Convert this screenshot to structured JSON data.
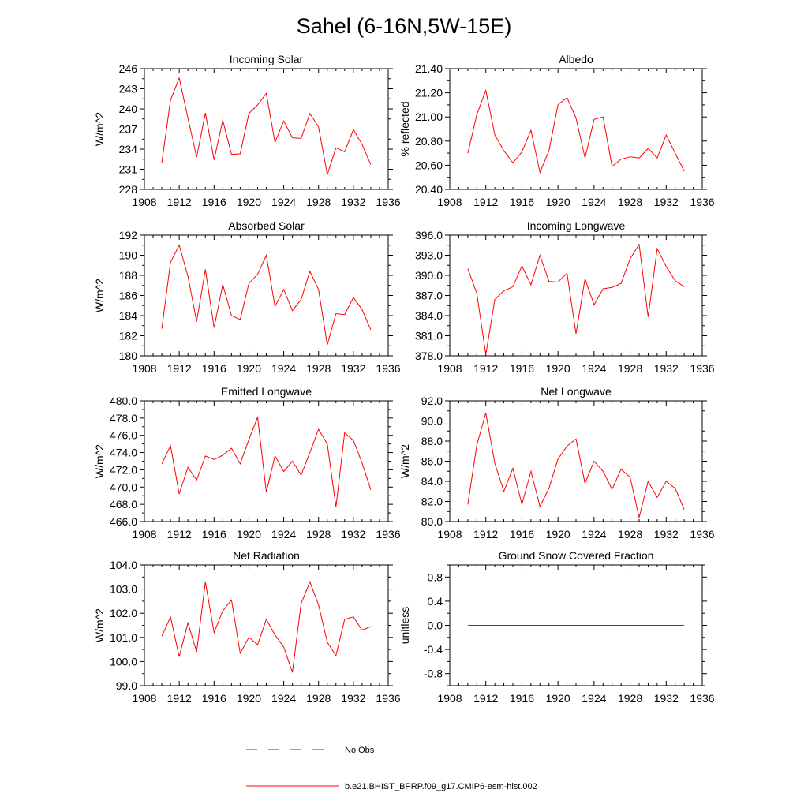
{
  "page_title": "Sahel (6-16N,5W-15E)",
  "colors": {
    "model": "#ff0000",
    "obs": "#3333aa",
    "axis": "#000000"
  },
  "legend": {
    "obs_label": "No Obs",
    "model_label": "b.e21.BHIST_BPRP.f09_g17.CMIP6-esm-hist.002"
  },
  "chart_data": [
    {
      "type": "line",
      "title": "Incoming Solar",
      "ylabel": "W/m^2",
      "xlim": [
        1908,
        1936
      ],
      "xticks": [
        1908,
        1912,
        1916,
        1920,
        1924,
        1928,
        1932,
        1936
      ],
      "ylim": [
        228,
        246
      ],
      "yticks": [
        228,
        231,
        234,
        237,
        240,
        243,
        246
      ],
      "ytick_labels": [
        "228",
        "231",
        "234",
        "237",
        "240",
        "243",
        "246"
      ],
      "x": [
        1910,
        1911,
        1912,
        1913,
        1914,
        1915,
        1916,
        1917,
        1918,
        1919,
        1920,
        1921,
        1922,
        1923,
        1924,
        1925,
        1926,
        1927,
        1928,
        1929,
        1930,
        1931,
        1932,
        1933,
        1934
      ],
      "series": [
        {
          "name": "b.e21.BHIST_BPRP.f09_g17.CMIP6-esm-hist.002",
          "values": [
            232.0,
            241.3,
            244.6,
            238.6,
            232.8,
            239.4,
            232.4,
            238.3,
            233.2,
            233.3,
            239.3,
            240.6,
            242.3,
            235.0,
            238.2,
            235.7,
            235.6,
            239.3,
            237.3,
            230.2,
            234.2,
            233.6,
            236.9,
            234.7,
            231.7
          ]
        }
      ]
    },
    {
      "type": "line",
      "title": "Albedo",
      "ylabel": "% reflected",
      "xlim": [
        1908,
        1936
      ],
      "xticks": [
        1908,
        1912,
        1916,
        1920,
        1924,
        1928,
        1932,
        1936
      ],
      "ylim": [
        20.4,
        21.4
      ],
      "yticks": [
        20.4,
        20.6,
        20.8,
        21.0,
        21.2,
        21.4
      ],
      "ytick_labels": [
        "20.40",
        "20.60",
        "20.80",
        "21.00",
        "21.20",
        "21.40"
      ],
      "x": [
        1910,
        1911,
        1912,
        1913,
        1914,
        1915,
        1916,
        1917,
        1918,
        1919,
        1920,
        1921,
        1922,
        1923,
        1924,
        1925,
        1926,
        1927,
        1928,
        1929,
        1930,
        1931,
        1932,
        1933,
        1934
      ],
      "series": [
        {
          "name": "b.e21.BHIST_BPRP.f09_g17.CMIP6-esm-hist.002",
          "values": [
            20.7,
            21.02,
            21.22,
            20.85,
            20.72,
            20.62,
            20.71,
            20.89,
            20.54,
            20.72,
            21.1,
            21.16,
            20.99,
            20.66,
            20.98,
            21.0,
            20.59,
            20.65,
            20.67,
            20.66,
            20.74,
            20.66,
            20.85,
            20.7,
            20.55
          ]
        }
      ]
    },
    {
      "type": "line",
      "title": "Absorbed Solar",
      "ylabel": "W/m^2",
      "xlim": [
        1908,
        1936
      ],
      "xticks": [
        1908,
        1912,
        1916,
        1920,
        1924,
        1928,
        1932,
        1936
      ],
      "ylim": [
        180,
        192
      ],
      "yticks": [
        180,
        182,
        184,
        186,
        188,
        190,
        192
      ],
      "ytick_labels": [
        "180",
        "182",
        "184",
        "186",
        "188",
        "190",
        "192"
      ],
      "x": [
        1910,
        1911,
        1912,
        1913,
        1914,
        1915,
        1916,
        1917,
        1918,
        1919,
        1920,
        1921,
        1922,
        1923,
        1924,
        1925,
        1926,
        1927,
        1928,
        1929,
        1930,
        1931,
        1932,
        1933,
        1934
      ],
      "series": [
        {
          "name": "b.e21.BHIST_BPRP.f09_g17.CMIP6-esm-hist.002",
          "values": [
            182.7,
            189.3,
            191.0,
            187.9,
            183.4,
            188.6,
            182.8,
            187.1,
            184.0,
            183.6,
            187.2,
            188.1,
            190.0,
            184.9,
            186.6,
            184.5,
            185.6,
            188.4,
            186.6,
            181.1,
            184.2,
            184.1,
            185.8,
            184.6,
            182.6
          ]
        }
      ]
    },
    {
      "type": "line",
      "title": "Incoming Longwave",
      "ylabel": "",
      "xlim": [
        1908,
        1936
      ],
      "xticks": [
        1908,
        1912,
        1916,
        1920,
        1924,
        1928,
        1932,
        1936
      ],
      "ylim": [
        378,
        396
      ],
      "yticks": [
        378,
        381,
        384,
        387,
        390,
        393,
        396
      ],
      "ytick_labels": [
        "378.0",
        "381.0",
        "384.0",
        "387.0",
        "390.0",
        "393.0",
        "396.0"
      ],
      "x": [
        1910,
        1911,
        1912,
        1913,
        1914,
        1915,
        1916,
        1917,
        1918,
        1919,
        1920,
        1921,
        1922,
        1923,
        1924,
        1925,
        1926,
        1927,
        1928,
        1929,
        1930,
        1931,
        1932,
        1933,
        1934
      ],
      "series": [
        {
          "name": "b.e21.BHIST_BPRP.f09_g17.CMIP6-esm-hist.002",
          "values": [
            391.0,
            387.3,
            378.2,
            386.4,
            387.7,
            388.3,
            391.4,
            388.6,
            393.0,
            389.1,
            389.0,
            390.3,
            381.3,
            389.5,
            385.6,
            388.0,
            388.2,
            388.8,
            392.5,
            394.6,
            383.8,
            394.0,
            391.3,
            389.2,
            388.3
          ]
        }
      ]
    },
    {
      "type": "line",
      "title": "Emitted Longwave",
      "ylabel": "W/m^2",
      "xlim": [
        1908,
        1936
      ],
      "xticks": [
        1908,
        1912,
        1916,
        1920,
        1924,
        1928,
        1932,
        1936
      ],
      "ylim": [
        466,
        480
      ],
      "yticks": [
        466,
        468,
        470,
        472,
        474,
        476,
        478,
        480
      ],
      "ytick_labels": [
        "466.0",
        "468.0",
        "470.0",
        "472.0",
        "474.0",
        "476.0",
        "478.0",
        "480.0"
      ],
      "x": [
        1910,
        1911,
        1912,
        1913,
        1914,
        1915,
        1916,
        1917,
        1918,
        1919,
        1920,
        1921,
        1922,
        1923,
        1924,
        1925,
        1926,
        1927,
        1928,
        1929,
        1930,
        1931,
        1932,
        1933,
        1934
      ],
      "series": [
        {
          "name": "b.e21.BHIST_BPRP.f09_g17.CMIP6-esm-hist.002",
          "values": [
            472.7,
            474.8,
            469.2,
            472.3,
            470.8,
            473.6,
            473.2,
            473.7,
            474.5,
            472.7,
            475.5,
            478.1,
            469.4,
            473.6,
            471.8,
            473.0,
            471.4,
            474.0,
            476.7,
            475.0,
            467.7,
            476.3,
            475.4,
            472.8,
            469.7
          ]
        }
      ]
    },
    {
      "type": "line",
      "title": "Net Longwave",
      "ylabel": "W/m^2",
      "xlim": [
        1908,
        1936
      ],
      "xticks": [
        1908,
        1912,
        1916,
        1920,
        1924,
        1928,
        1932,
        1936
      ],
      "ylim": [
        80,
        92
      ],
      "yticks": [
        80,
        82,
        84,
        86,
        88,
        90,
        92
      ],
      "ytick_labels": [
        "80.0",
        "82.0",
        "84.0",
        "86.0",
        "88.0",
        "90.0",
        "92.0"
      ],
      "x": [
        1910,
        1911,
        1912,
        1913,
        1914,
        1915,
        1916,
        1917,
        1918,
        1919,
        1920,
        1921,
        1922,
        1923,
        1924,
        1925,
        1926,
        1927,
        1928,
        1929,
        1930,
        1931,
        1932,
        1933,
        1934
      ],
      "series": [
        {
          "name": "b.e21.BHIST_BPRP.f09_g17.CMIP6-esm-hist.002",
          "values": [
            81.7,
            87.6,
            90.8,
            85.8,
            83.0,
            85.3,
            81.7,
            85.0,
            81.5,
            83.3,
            86.2,
            87.5,
            88.2,
            83.8,
            86.0,
            85.0,
            83.2,
            85.2,
            84.4,
            80.4,
            84.0,
            82.4,
            84.0,
            83.3,
            81.2
          ]
        }
      ]
    },
    {
      "type": "line",
      "title": "Net Radiation",
      "ylabel": "W/m^2",
      "xlim": [
        1908,
        1936
      ],
      "xticks": [
        1908,
        1912,
        1916,
        1920,
        1924,
        1928,
        1932,
        1936
      ],
      "ylim": [
        99,
        104
      ],
      "yticks": [
        99,
        100,
        101,
        102,
        103,
        104
      ],
      "ytick_labels": [
        "99.0",
        "100.0",
        "101.0",
        "102.0",
        "103.0",
        "104.0"
      ],
      "x": [
        1910,
        1911,
        1912,
        1913,
        1914,
        1915,
        1916,
        1917,
        1918,
        1919,
        1920,
        1921,
        1922,
        1923,
        1924,
        1925,
        1926,
        1927,
        1928,
        1929,
        1930,
        1931,
        1932,
        1933,
        1934
      ],
      "series": [
        {
          "name": "b.e21.BHIST_BPRP.f09_g17.CMIP6-esm-hist.002",
          "values": [
            101.05,
            101.85,
            100.2,
            101.6,
            100.4,
            103.3,
            101.2,
            102.1,
            102.55,
            100.35,
            101.0,
            100.7,
            101.75,
            101.1,
            100.6,
            99.55,
            102.4,
            103.3,
            102.35,
            100.8,
            100.25,
            101.75,
            101.85,
            101.3,
            101.45
          ]
        }
      ]
    },
    {
      "type": "line",
      "title": "Ground Snow Covered Fraction",
      "ylabel": "unitless",
      "xlim": [
        1908,
        1936
      ],
      "xticks": [
        1908,
        1912,
        1916,
        1920,
        1924,
        1928,
        1932,
        1936
      ],
      "ylim": [
        -1.0,
        1.0
      ],
      "yticks": [
        -0.8,
        -0.4,
        0.0,
        0.4,
        0.8
      ],
      "ytick_labels": [
        "-0.8",
        "-0.4",
        "0.0",
        "0.4",
        "0.8"
      ],
      "x": [
        1910,
        1911,
        1912,
        1913,
        1914,
        1915,
        1916,
        1917,
        1918,
        1919,
        1920,
        1921,
        1922,
        1923,
        1924,
        1925,
        1926,
        1927,
        1928,
        1929,
        1930,
        1931,
        1932,
        1933,
        1934
      ],
      "series": [
        {
          "name": "b.e21.BHIST_BPRP.f09_g17.CMIP6-esm-hist.002",
          "values": [
            0,
            0,
            0,
            0,
            0,
            0,
            0,
            0,
            0,
            0,
            0,
            0,
            0,
            0,
            0,
            0,
            0,
            0,
            0,
            0,
            0,
            0,
            0,
            0,
            0
          ]
        }
      ]
    }
  ]
}
